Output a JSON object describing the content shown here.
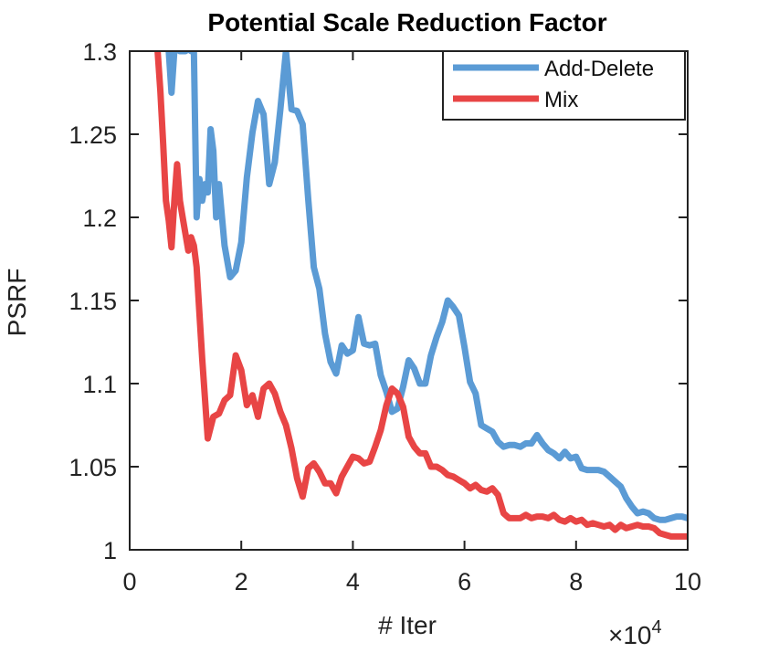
{
  "chart_data": {
    "type": "line",
    "title": "Potential Scale Reduction Factor",
    "xlabel": "# Iter",
    "ylabel": "PSRF",
    "x_multiplier_label": "×10",
    "x_multiplier_exponent": "4",
    "xlim": [
      0,
      10
    ],
    "ylim": [
      1.0,
      1.3
    ],
    "xticks": [
      0,
      2,
      4,
      6,
      8,
      10
    ],
    "xtick_labels": [
      "0",
      "2",
      "4",
      "6",
      "8",
      "10"
    ],
    "yticks": [
      1.0,
      1.05,
      1.1,
      1.15,
      1.2,
      1.25,
      1.3
    ],
    "ytick_labels": [
      "1",
      "1.05",
      "1.1",
      "1.15",
      "1.2",
      "1.25",
      "1.3"
    ],
    "grid": false,
    "legend_position": "top-right",
    "series": [
      {
        "name": "Add-Delete",
        "color": "#5b9bd5",
        "x": [
          0.7,
          0.75,
          0.8,
          0.85,
          0.9,
          0.95,
          1.0,
          1.05,
          1.1,
          1.15,
          1.2,
          1.25,
          1.3,
          1.35,
          1.4,
          1.45,
          1.5,
          1.55,
          1.6,
          1.7,
          1.8,
          1.9,
          2.0,
          2.1,
          2.2,
          2.3,
          2.4,
          2.5,
          2.6,
          2.7,
          2.8,
          2.9,
          3.0,
          3.1,
          3.2,
          3.3,
          3.4,
          3.5,
          3.6,
          3.7,
          3.8,
          3.9,
          4.0,
          4.1,
          4.2,
          4.3,
          4.4,
          4.5,
          4.6,
          4.7,
          4.8,
          4.9,
          5.0,
          5.1,
          5.2,
          5.3,
          5.4,
          5.5,
          5.6,
          5.7,
          5.8,
          5.9,
          6.0,
          6.1,
          6.2,
          6.3,
          6.4,
          6.5,
          6.6,
          6.7,
          6.8,
          6.9,
          7.0,
          7.1,
          7.2,
          7.3,
          7.4,
          7.5,
          7.6,
          7.7,
          7.8,
          7.9,
          8.0,
          8.1,
          8.2,
          8.3,
          8.4,
          8.5,
          8.6,
          8.7,
          8.8,
          8.9,
          9.0,
          9.1,
          9.2,
          9.3,
          9.4,
          9.5,
          9.6,
          9.7,
          9.8,
          9.9,
          10.0
        ],
        "y": [
          1.3,
          1.275,
          1.3,
          1.32,
          1.3,
          1.3,
          1.3,
          1.31,
          1.3,
          1.3,
          1.2,
          1.223,
          1.21,
          1.22,
          1.215,
          1.253,
          1.24,
          1.2,
          1.22,
          1.183,
          1.164,
          1.168,
          1.185,
          1.224,
          1.251,
          1.27,
          1.262,
          1.22,
          1.233,
          1.265,
          1.3,
          1.265,
          1.264,
          1.256,
          1.211,
          1.17,
          1.157,
          1.13,
          1.113,
          1.106,
          1.123,
          1.118,
          1.12,
          1.14,
          1.124,
          1.123,
          1.124,
          1.105,
          1.095,
          1.083,
          1.085,
          1.098,
          1.114,
          1.109,
          1.1,
          1.1,
          1.117,
          1.128,
          1.137,
          1.15,
          1.146,
          1.141,
          1.122,
          1.101,
          1.094,
          1.075,
          1.073,
          1.071,
          1.065,
          1.062,
          1.063,
          1.063,
          1.062,
          1.064,
          1.064,
          1.069,
          1.064,
          1.06,
          1.058,
          1.055,
          1.059,
          1.055,
          1.056,
          1.049,
          1.048,
          1.048,
          1.048,
          1.047,
          1.044,
          1.041,
          1.038,
          1.031,
          1.026,
          1.022,
          1.023,
          1.022,
          1.019,
          1.018,
          1.018,
          1.019,
          1.02,
          1.02,
          1.019
        ]
      },
      {
        "name": "Mix",
        "color": "#e84545",
        "x": [
          0.5,
          0.55,
          0.6,
          0.65,
          0.7,
          0.75,
          0.8,
          0.85,
          0.9,
          0.95,
          1.0,
          1.05,
          1.1,
          1.15,
          1.2,
          1.3,
          1.4,
          1.5,
          1.6,
          1.7,
          1.8,
          1.9,
          2.0,
          2.1,
          2.2,
          2.3,
          2.4,
          2.5,
          2.6,
          2.7,
          2.8,
          2.9,
          3.0,
          3.1,
          3.2,
          3.3,
          3.4,
          3.5,
          3.6,
          3.7,
          3.8,
          3.9,
          4.0,
          4.1,
          4.2,
          4.3,
          4.4,
          4.5,
          4.6,
          4.7,
          4.8,
          4.9,
          5.0,
          5.1,
          5.2,
          5.3,
          5.4,
          5.5,
          5.6,
          5.7,
          5.8,
          5.9,
          6.0,
          6.1,
          6.2,
          6.3,
          6.4,
          6.5,
          6.6,
          6.7,
          6.8,
          6.9,
          7.0,
          7.1,
          7.2,
          7.3,
          7.4,
          7.5,
          7.6,
          7.7,
          7.8,
          7.9,
          8.0,
          8.1,
          8.2,
          8.3,
          8.4,
          8.5,
          8.6,
          8.7,
          8.8,
          8.9,
          9.0,
          9.1,
          9.2,
          9.3,
          9.4,
          9.5,
          9.6,
          9.7,
          9.8,
          9.9,
          10.0
        ],
        "y": [
          1.3,
          1.276,
          1.244,
          1.21,
          1.198,
          1.182,
          1.21,
          1.232,
          1.21,
          1.2,
          1.19,
          1.18,
          1.188,
          1.183,
          1.17,
          1.115,
          1.067,
          1.08,
          1.082,
          1.09,
          1.093,
          1.117,
          1.108,
          1.087,
          1.093,
          1.08,
          1.097,
          1.1,
          1.094,
          1.083,
          1.075,
          1.061,
          1.043,
          1.032,
          1.049,
          1.052,
          1.047,
          1.04,
          1.04,
          1.034,
          1.044,
          1.05,
          1.056,
          1.055,
          1.052,
          1.053,
          1.062,
          1.072,
          1.087,
          1.097,
          1.094,
          1.086,
          1.068,
          1.062,
          1.058,
          1.058,
          1.05,
          1.05,
          1.048,
          1.045,
          1.044,
          1.042,
          1.04,
          1.037,
          1.039,
          1.036,
          1.035,
          1.037,
          1.033,
          1.022,
          1.019,
          1.019,
          1.019,
          1.021,
          1.019,
          1.02,
          1.02,
          1.019,
          1.021,
          1.018,
          1.017,
          1.019,
          1.017,
          1.018,
          1.015,
          1.016,
          1.015,
          1.014,
          1.015,
          1.012,
          1.015,
          1.013,
          1.014,
          1.015,
          1.014,
          1.014,
          1.013,
          1.01,
          1.009,
          1.008,
          1.008,
          1.008,
          1.008
        ]
      }
    ]
  }
}
